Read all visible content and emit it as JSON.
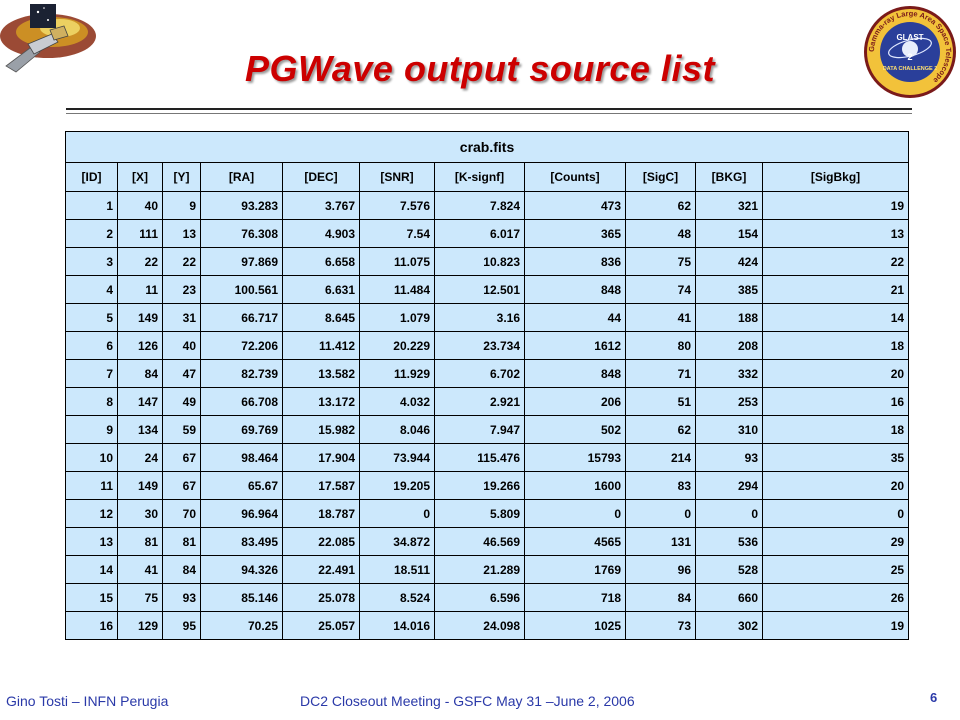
{
  "slide": {
    "title": "PGWave output source list",
    "footer_left": "Gino Tosti – INFN Perugia",
    "footer_center": "DC2 Closeout Meeting  - GSFC  May 31 –June 2, 2006",
    "page_number": "6",
    "accent_color": "#cc0000",
    "table_bg": "#cce8fc",
    "footer_color": "#2a39a8"
  },
  "badge": {
    "ring_text": "Gamma-ray Large Area Space Telescope",
    "center_text": "GLAST",
    "bottom_text": "DATA CHALLENGE 2"
  },
  "table": {
    "caption": "crab.fits",
    "columns": [
      "[ID]",
      "[X]",
      "[Y]",
      "[RA]",
      "[DEC]",
      "[SNR]",
      "[K-signf]",
      "[Counts]",
      "[SigC]",
      "[BKG]",
      "[SigBkg]"
    ],
    "rows": [
      [
        "1",
        "40",
        "9",
        "93.283",
        "3.767",
        "7.576",
        "7.824",
        "473",
        "62",
        "321",
        "19"
      ],
      [
        "2",
        "111",
        "13",
        "76.308",
        "4.903",
        "7.54",
        "6.017",
        "365",
        "48",
        "154",
        "13"
      ],
      [
        "3",
        "22",
        "22",
        "97.869",
        "6.658",
        "11.075",
        "10.823",
        "836",
        "75",
        "424",
        "22"
      ],
      [
        "4",
        "11",
        "23",
        "100.561",
        "6.631",
        "11.484",
        "12.501",
        "848",
        "74",
        "385",
        "21"
      ],
      [
        "5",
        "149",
        "31",
        "66.717",
        "8.645",
        "1.079",
        "3.16",
        "44",
        "41",
        "188",
        "14"
      ],
      [
        "6",
        "126",
        "40",
        "72.206",
        "11.412",
        "20.229",
        "23.734",
        "1612",
        "80",
        "208",
        "18"
      ],
      [
        "7",
        "84",
        "47",
        "82.739",
        "13.582",
        "11.929",
        "6.702",
        "848",
        "71",
        "332",
        "20"
      ],
      [
        "8",
        "147",
        "49",
        "66.708",
        "13.172",
        "4.032",
        "2.921",
        "206",
        "51",
        "253",
        "16"
      ],
      [
        "9",
        "134",
        "59",
        "69.769",
        "15.982",
        "8.046",
        "7.947",
        "502",
        "62",
        "310",
        "18"
      ],
      [
        "10",
        "24",
        "67",
        "98.464",
        "17.904",
        "73.944",
        "115.476",
        "15793",
        "214",
        "93",
        "35"
      ],
      [
        "11",
        "149",
        "67",
        "65.67",
        "17.587",
        "19.205",
        "19.266",
        "1600",
        "83",
        "294",
        "20"
      ],
      [
        "12",
        "30",
        "70",
        "96.964",
        "18.787",
        "0",
        "5.809",
        "0",
        "0",
        "0",
        "0"
      ],
      [
        "13",
        "81",
        "81",
        "83.495",
        "22.085",
        "34.872",
        "46.569",
        "4565",
        "131",
        "536",
        "29"
      ],
      [
        "14",
        "41",
        "84",
        "94.326",
        "22.491",
        "18.511",
        "21.289",
        "1769",
        "96",
        "528",
        "25"
      ],
      [
        "15",
        "75",
        "93",
        "85.146",
        "25.078",
        "8.524",
        "6.596",
        "718",
        "84",
        "660",
        "26"
      ],
      [
        "16",
        "129",
        "95",
        "70.25",
        "25.057",
        "14.016",
        "24.098",
        "1025",
        "73",
        "302",
        "19"
      ]
    ]
  }
}
